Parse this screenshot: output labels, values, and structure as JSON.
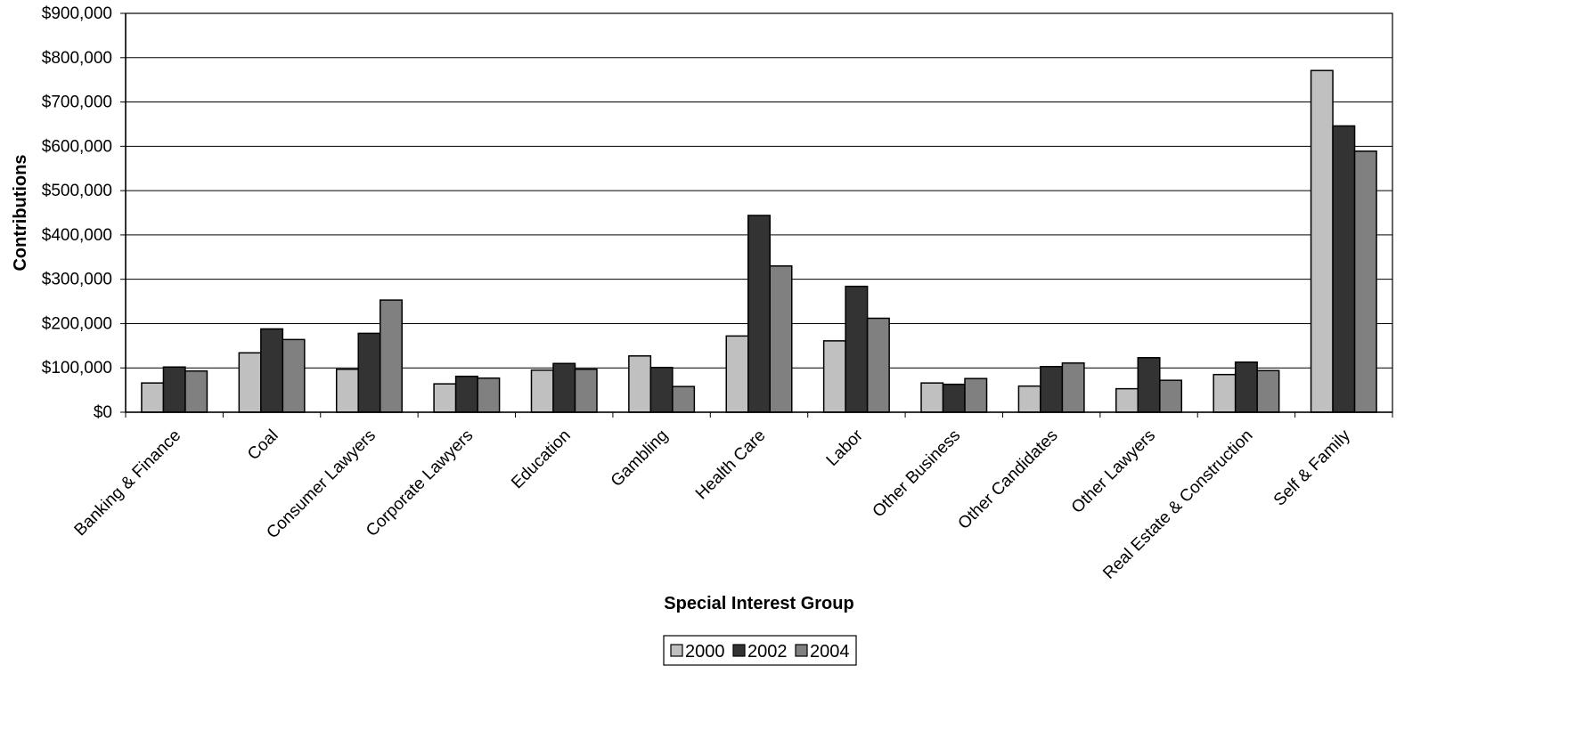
{
  "chart_data": {
    "type": "bar",
    "title": "",
    "xlabel": "Special Interest Group",
    "ylabel": "Contributions",
    "ylim": [
      0,
      900000
    ],
    "yticks": [
      0,
      100000,
      200000,
      300000,
      400000,
      500000,
      600000,
      700000,
      800000,
      900000
    ],
    "ytick_labels": [
      "$0",
      "$100,000",
      "$200,000",
      "$300,000",
      "$400,000",
      "$500,000",
      "$600,000",
      "$700,000",
      "$800,000",
      "$900,000"
    ],
    "grid": true,
    "legend_position": "bottom-center",
    "categories": [
      "Banking & Finance",
      "Coal",
      "Consumer Lawyers",
      "Corporate Lawyers",
      "Education",
      "Gambling",
      "Health Care",
      "Labor",
      "Other Business",
      "Other Candidates",
      "Other Lawyers",
      "Real Estate & Construction",
      "Self & Family"
    ],
    "series": [
      {
        "name": "2000",
        "color": "#c0c0c0",
        "values": [
          66000,
          134000,
          97000,
          64000,
          95000,
          127000,
          172000,
          161000,
          66000,
          59000,
          53000,
          85000,
          771000
        ]
      },
      {
        "name": "2002",
        "color": "#333333",
        "values": [
          102000,
          188000,
          178000,
          81000,
          110000,
          101000,
          444000,
          284000,
          63000,
          103000,
          123000,
          113000,
          646000
        ]
      },
      {
        "name": "2004",
        "color": "#808080",
        "values": [
          93000,
          164000,
          253000,
          77000,
          97000,
          58000,
          330000,
          212000,
          76000,
          111000,
          72000,
          94000,
          589000
        ]
      }
    ]
  }
}
